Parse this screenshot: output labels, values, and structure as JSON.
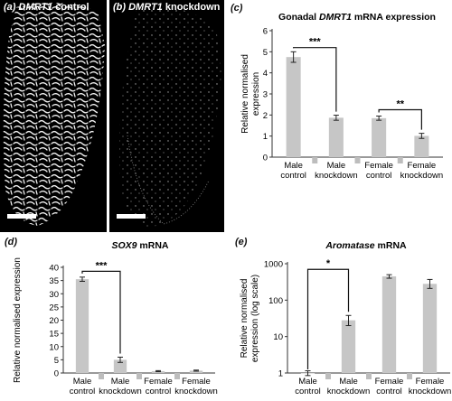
{
  "panels": {
    "a": {
      "letter": "(a)",
      "gene": "DMRT1",
      "rest": " control"
    },
    "b": {
      "letter": "(b)",
      "gene": "DMRT1",
      "rest": " knockdown"
    },
    "c": {
      "letter": "(c)"
    },
    "d": {
      "letter": "(d)"
    },
    "e": {
      "letter": "(e)"
    }
  },
  "chart_data": [
    {
      "id": "c",
      "type": "bar",
      "title_parts": [
        {
          "t": "Gonadal ",
          "i": false
        },
        {
          "t": "DMRT1",
          "i": true
        },
        {
          "t": " mRNA expression",
          "i": false
        }
      ],
      "ylabel": [
        "Relative normalised",
        "expression"
      ],
      "categories": [
        [
          "Male",
          "control"
        ],
        [
          "Male",
          "knockdown"
        ],
        [
          "Female",
          "control"
        ],
        [
          "Female",
          "knockdown"
        ]
      ],
      "values": [
        4.75,
        1.87,
        1.85,
        1.01
      ],
      "errors": [
        0.25,
        0.12,
        0.1,
        0.12
      ],
      "ylim": [
        0,
        6
      ],
      "yticks": [
        0,
        1,
        2,
        3,
        4,
        5,
        6
      ],
      "scale": "linear",
      "bar_color": "#c6c6c6",
      "significance": [
        {
          "from": 0,
          "to": 1,
          "y": 5.2,
          "label": "***"
        },
        {
          "from": 2,
          "to": 3,
          "y": 2.25,
          "label": "**"
        }
      ]
    },
    {
      "id": "d",
      "type": "bar",
      "title_parts": [
        {
          "t": "SOX9",
          "i": true
        },
        {
          "t": " mRNA",
          "i": false
        }
      ],
      "ylabel": [
        "Relative normalised expression"
      ],
      "categories": [
        [
          "Male",
          "control"
        ],
        [
          "Male",
          "knockdown"
        ],
        [
          "Female",
          "control"
        ],
        [
          "Female",
          "knockdown"
        ]
      ],
      "values": [
        35.5,
        5.0,
        0.7,
        0.9
      ],
      "errors": [
        0.8,
        1.0,
        0.2,
        0.2
      ],
      "ylim": [
        0,
        40
      ],
      "yticks": [
        0,
        5,
        10,
        15,
        20,
        25,
        30,
        35,
        40
      ],
      "scale": "linear",
      "bar_color": "#c6c6c6",
      "significance": [
        {
          "from": 0,
          "to": 1,
          "y": 38.5,
          "label": "***"
        }
      ]
    },
    {
      "id": "e",
      "type": "bar",
      "title_parts": [
        {
          "t": "Aromatase",
          "i": true
        },
        {
          "t": " mRNA",
          "i": false
        }
      ],
      "ylabel": [
        "Relative normalised",
        "expression (log scale)"
      ],
      "categories": [
        [
          "Male",
          "control"
        ],
        [
          "Male",
          "knockdown"
        ],
        [
          "Female",
          "control"
        ],
        [
          "Female",
          "knockdown"
        ]
      ],
      "values": [
        1,
        28,
        450,
        280
      ],
      "errors_low": [
        0.85,
        20,
        400,
        210
      ],
      "errors_high": [
        1.15,
        38,
        500,
        370
      ],
      "ylim": [
        1,
        1000
      ],
      "yticks": [
        1,
        10,
        100,
        1000
      ],
      "scale": "log",
      "bar_color": "#c6c6c6",
      "significance": [
        {
          "from": 0,
          "to": 1,
          "y": 700,
          "label": "*"
        }
      ]
    }
  ]
}
